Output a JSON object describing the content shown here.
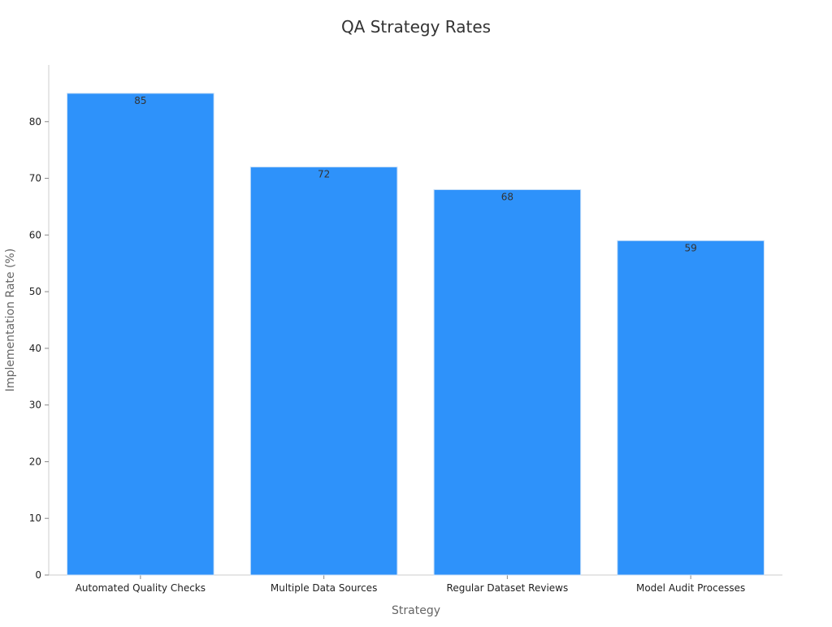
{
  "chart_data": {
    "type": "bar",
    "title": "QA Strategy Rates",
    "xlabel": "Strategy",
    "ylabel": "Implementation Rate (%)",
    "categories": [
      "Automated Quality Checks",
      "Multiple Data Sources",
      "Regular Dataset Reviews",
      "Model Audit Processes"
    ],
    "values": [
      85,
      72,
      68,
      59
    ],
    "ylim": [
      0,
      90
    ],
    "yticks": [
      0,
      10,
      20,
      30,
      40,
      50,
      60,
      70,
      80
    ],
    "bar_color": "#2e92fa",
    "bar_edge_color": "#c8dff7",
    "show_data_labels": true,
    "grid": false,
    "legend": "none"
  }
}
